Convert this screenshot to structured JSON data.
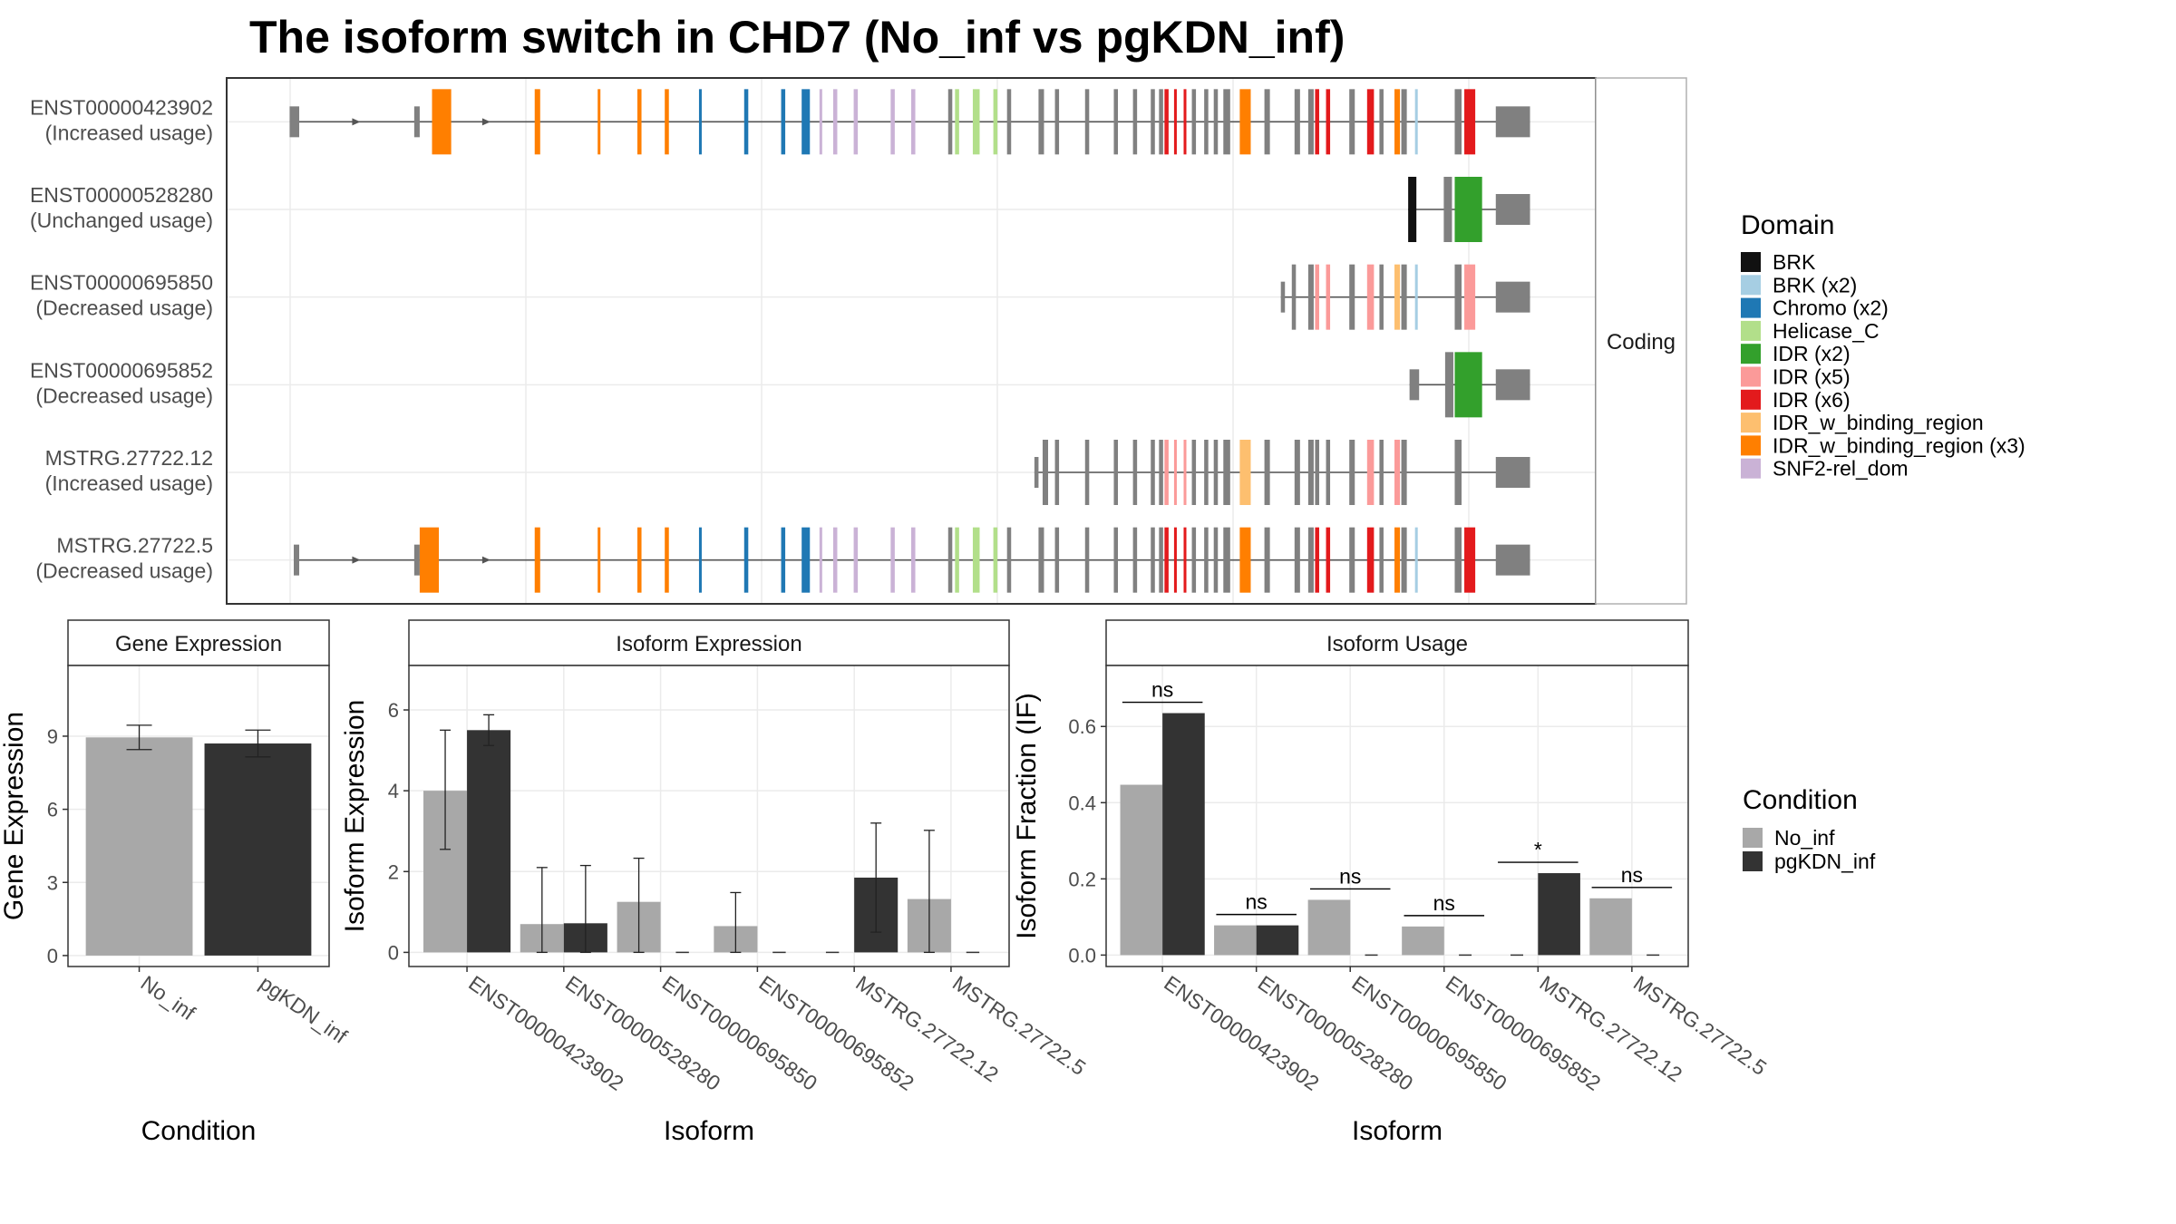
{
  "title": "The isoform switch in CHD7 (No_inf vs pgKDN_inf)",
  "colors": {
    "no_inf": "#a8a8a8",
    "pgkdn_inf": "#333333",
    "utr_exon": "#808080",
    "intron": "#555555",
    "panel_border": "#333333",
    "strip_fill": "#ffffff",
    "grid": "#ebebeb"
  },
  "structure": {
    "strip_label": "Coding",
    "isoforms": [
      {
        "id": "ENST00000423902",
        "usage": "(Increased usage)",
        "start": 46,
        "end": 952,
        "arrows": [
          95,
          190
        ],
        "utr": [
          [
            46,
            53
          ],
          [
            137,
            141
          ],
          [
            927,
            952
          ]
        ],
        "domains": [
          {
            "k": "IDR_w_binding_region (x3)",
            "p": [
              150,
              164
            ]
          },
          {
            "k": "IDR_w_binding_region (x3)",
            "p": [
              225,
              229
            ]
          },
          {
            "k": "IDR_w_binding_region (x3)",
            "p": [
              271,
              273
            ]
          },
          {
            "k": "IDR_w_binding_region (x3)",
            "p": [
              300,
              303
            ]
          },
          {
            "k": "IDR_w_binding_region (x3)",
            "p": [
              320,
              323
            ]
          },
          {
            "k": "Chromo (x2)",
            "p": [
              345,
              347
            ]
          },
          {
            "k": "Chromo (x2)",
            "p": [
              378,
              381
            ]
          },
          {
            "k": "Chromo (x2)",
            "p": [
              405,
              408
            ]
          },
          {
            "k": "Chromo (x2)",
            "p": [
              420,
              426
            ]
          },
          {
            "k": "SNF2-rel_dom",
            "p": [
              433,
              435
            ]
          },
          {
            "k": "SNF2-rel_dom",
            "p": [
              443,
              446
            ]
          },
          {
            "k": "SNF2-rel_dom",
            "p": [
              458,
              461
            ]
          },
          {
            "k": "SNF2-rel_dom",
            "p": [
              485,
              488
            ]
          },
          {
            "k": "SNF2-rel_dom",
            "p": [
              500,
              503
            ]
          },
          {
            "k": "Helicase_C",
            "p": [
              532,
              535
            ]
          },
          {
            "k": "Helicase_C",
            "p": [
              545,
              550
            ]
          },
          {
            "k": "Helicase_C",
            "p": [
              560,
              563
            ]
          },
          {
            "k": "IDR (x6)",
            "p": [
              685,
              688
            ]
          },
          {
            "k": "IDR (x6)",
            "p": [
              692,
              694
            ]
          },
          {
            "k": "IDR (x6)",
            "p": [
              699,
              701
            ]
          },
          {
            "k": "IDR_w_binding_region (x3)",
            "p": [
              740,
              748
            ]
          },
          {
            "k": "IDR (x6)",
            "p": [
              795,
              798
            ]
          },
          {
            "k": "IDR (x6)",
            "p": [
              803,
              806
            ]
          },
          {
            "k": "IDR (x6)",
            "p": [
              833,
              838
            ]
          },
          {
            "k": "IDR_w_binding_region (x3)",
            "p": [
              853,
              857
            ]
          },
          {
            "k": "BRK (x2)",
            "p": [
              868,
              870
            ]
          },
          {
            "k": "IDR (x6)",
            "p": [
              904,
              912
            ]
          }
        ],
        "cds": [
          [
            527,
            530
          ],
          [
            570,
            573
          ],
          [
            593,
            597
          ],
          [
            605,
            608
          ],
          [
            627,
            630
          ],
          [
            648,
            651
          ],
          [
            662,
            665
          ],
          [
            675,
            678
          ],
          [
            681,
            684
          ],
          [
            705,
            708
          ],
          [
            714,
            717
          ],
          [
            721,
            724
          ],
          [
            728,
            733
          ],
          [
            758,
            762
          ],
          [
            780,
            784
          ],
          [
            790,
            794
          ],
          [
            820,
            824
          ],
          [
            842,
            845
          ],
          [
            858,
            862
          ],
          [
            897,
            902
          ]
        ]
      },
      {
        "id": "ENST00000528280",
        "usage": "(Unchanged usage)",
        "start": 863,
        "end": 952,
        "arrows": [],
        "utr": [
          [
            927,
            952
          ]
        ],
        "domains": [
          {
            "k": "BRK",
            "p": [
              863,
              869
            ]
          },
          {
            "k": "IDR (x2)",
            "p": [
              897,
              917
            ]
          }
        ],
        "cds": [
          [
            889,
            895
          ]
        ]
      },
      {
        "id": "ENST00000695850",
        "usage": "(Decreased usage)",
        "start": 770,
        "end": 952,
        "arrows": [],
        "utr": [
          [
            770,
            773
          ],
          [
            927,
            952
          ]
        ],
        "domains": [
          {
            "k": "IDR (x5)",
            "p": [
              795,
              798
            ]
          },
          {
            "k": "IDR (x5)",
            "p": [
              803,
              806
            ]
          },
          {
            "k": "IDR (x5)",
            "p": [
              833,
              838
            ]
          },
          {
            "k": "IDR_w_binding_region",
            "p": [
              853,
              857
            ]
          },
          {
            "k": "BRK (x2)",
            "p": [
              868,
              870
            ]
          },
          {
            "k": "IDR (x5)",
            "p": [
              904,
              912
            ]
          }
        ],
        "cds": [
          [
            778,
            781
          ],
          [
            790,
            794
          ],
          [
            820,
            824
          ],
          [
            842,
            845
          ],
          [
            858,
            862
          ],
          [
            897,
            902
          ]
        ]
      },
      {
        "id": "ENST00000695852",
        "usage": "(Decreased usage)",
        "start": 864,
        "end": 952,
        "arrows": [],
        "utr": [
          [
            864,
            871
          ],
          [
            927,
            952
          ]
        ],
        "domains": [
          {
            "k": "IDR (x2)",
            "p": [
              897,
              917
            ]
          }
        ],
        "cds": [
          [
            890,
            896
          ]
        ]
      },
      {
        "id": "MSTRG.27722.12",
        "usage": "(Increased usage)",
        "start": 590,
        "end": 952,
        "arrows": [],
        "utr": [
          [
            590,
            593
          ],
          [
            927,
            952
          ]
        ],
        "domains": [
          {
            "k": "IDR (x5)",
            "p": [
              685,
              688
            ]
          },
          {
            "k": "IDR (x5)",
            "p": [
              692,
              694
            ]
          },
          {
            "k": "IDR (x5)",
            "p": [
              699,
              701
            ]
          },
          {
            "k": "IDR_w_binding_region",
            "p": [
              740,
              748
            ]
          },
          {
            "k": "IDR (x5)",
            "p": [
              833,
              838
            ]
          },
          {
            "k": "IDR (x5)",
            "p": [
              853,
              857
            ]
          }
        ],
        "cds": [
          [
            596,
            600
          ],
          [
            605,
            608
          ],
          [
            627,
            630
          ],
          [
            648,
            651
          ],
          [
            662,
            665
          ],
          [
            675,
            678
          ],
          [
            681,
            684
          ],
          [
            705,
            708
          ],
          [
            714,
            717
          ],
          [
            721,
            724
          ],
          [
            728,
            733
          ],
          [
            758,
            762
          ],
          [
            780,
            784
          ],
          [
            790,
            794
          ],
          [
            795,
            798
          ],
          [
            803,
            806
          ],
          [
            820,
            824
          ],
          [
            842,
            845
          ],
          [
            858,
            862
          ],
          [
            897,
            902
          ]
        ]
      },
      {
        "id": "MSTRG.27722.5",
        "usage": "(Decreased usage)",
        "start": 49,
        "end": 952,
        "arrows": [
          95,
          190
        ],
        "utr": [
          [
            49,
            53
          ],
          [
            137,
            141
          ],
          [
            927,
            952
          ]
        ],
        "domains": [
          {
            "k": "IDR_w_binding_region (x3)",
            "p": [
              141,
              155
            ]
          },
          {
            "k": "IDR_w_binding_region (x3)",
            "p": [
              225,
              229
            ]
          },
          {
            "k": "IDR_w_binding_region (x3)",
            "p": [
              271,
              273
            ]
          },
          {
            "k": "IDR_w_binding_region (x3)",
            "p": [
              300,
              303
            ]
          },
          {
            "k": "IDR_w_binding_region (x3)",
            "p": [
              320,
              323
            ]
          },
          {
            "k": "Chromo (x2)",
            "p": [
              345,
              347
            ]
          },
          {
            "k": "Chromo (x2)",
            "p": [
              378,
              381
            ]
          },
          {
            "k": "Chromo (x2)",
            "p": [
              405,
              408
            ]
          },
          {
            "k": "Chromo (x2)",
            "p": [
              420,
              426
            ]
          },
          {
            "k": "SNF2-rel_dom",
            "p": [
              433,
              435
            ]
          },
          {
            "k": "SNF2-rel_dom",
            "p": [
              443,
              446
            ]
          },
          {
            "k": "SNF2-rel_dom",
            "p": [
              458,
              461
            ]
          },
          {
            "k": "SNF2-rel_dom",
            "p": [
              485,
              488
            ]
          },
          {
            "k": "SNF2-rel_dom",
            "p": [
              500,
              503
            ]
          },
          {
            "k": "Helicase_C",
            "p": [
              532,
              535
            ]
          },
          {
            "k": "Helicase_C",
            "p": [
              545,
              550
            ]
          },
          {
            "k": "Helicase_C",
            "p": [
              560,
              563
            ]
          },
          {
            "k": "IDR (x6)",
            "p": [
              685,
              688
            ]
          },
          {
            "k": "IDR (x6)",
            "p": [
              692,
              694
            ]
          },
          {
            "k": "IDR (x6)",
            "p": [
              699,
              701
            ]
          },
          {
            "k": "IDR_w_binding_region (x3)",
            "p": [
              740,
              748
            ]
          },
          {
            "k": "IDR (x6)",
            "p": [
              795,
              798
            ]
          },
          {
            "k": "IDR (x6)",
            "p": [
              803,
              806
            ]
          },
          {
            "k": "IDR (x6)",
            "p": [
              833,
              838
            ]
          },
          {
            "k": "IDR_w_binding_region (x3)",
            "p": [
              853,
              857
            ]
          },
          {
            "k": "BRK (x2)",
            "p": [
              868,
              870
            ]
          },
          {
            "k": "IDR (x6)",
            "p": [
              904,
              912
            ]
          }
        ],
        "cds": [
          [
            527,
            530
          ],
          [
            570,
            573
          ],
          [
            593,
            597
          ],
          [
            605,
            608
          ],
          [
            627,
            630
          ],
          [
            648,
            651
          ],
          [
            662,
            665
          ],
          [
            675,
            678
          ],
          [
            681,
            684
          ],
          [
            705,
            708
          ],
          [
            714,
            717
          ],
          [
            721,
            724
          ],
          [
            728,
            733
          ],
          [
            758,
            762
          ],
          [
            780,
            784
          ],
          [
            790,
            794
          ],
          [
            820,
            824
          ],
          [
            842,
            845
          ],
          [
            858,
            862
          ],
          [
            897,
            902
          ]
        ]
      }
    ]
  },
  "legends": {
    "domain": {
      "title": "Domain",
      "entries": [
        {
          "label": "BRK",
          "color": "#111111"
        },
        {
          "label": "BRK (x2)",
          "color": "#a6cee3"
        },
        {
          "label": "Chromo (x2)",
          "color": "#1f78b4"
        },
        {
          "label": "Helicase_C",
          "color": "#b2df8a"
        },
        {
          "label": "IDR (x2)",
          "color": "#33a02c"
        },
        {
          "label": "IDR (x5)",
          "color": "#fb9a99"
        },
        {
          "label": "IDR (x6)",
          "color": "#e31a1c"
        },
        {
          "label": "IDR_w_binding_region",
          "color": "#fdbf6f"
        },
        {
          "label": "IDR_w_binding_region (x3)",
          "color": "#ff7f00"
        },
        {
          "label": "SNF2-rel_dom",
          "color": "#cab2d6"
        }
      ]
    },
    "condition": {
      "title": "Condition",
      "entries": [
        {
          "label": "No_inf",
          "color": "#a8a8a8"
        },
        {
          "label": "pgKDN_inf",
          "color": "#333333"
        }
      ]
    }
  },
  "chart_data": [
    {
      "type": "bar",
      "strip": "Gene Expression",
      "xlabel": "Condition",
      "ylabel": "Gene Expression",
      "categories": [
        "No_inf",
        "pgKDN_inf"
      ],
      "values": [
        8.95,
        8.7
      ],
      "errors": [
        [
          8.45,
          9.45
        ],
        [
          8.15,
          9.25
        ]
      ],
      "ylim": [
        -0.45,
        11.9
      ],
      "yticks": [
        0,
        3,
        6,
        9
      ]
    },
    {
      "type": "bar",
      "strip": "Isoform Expression",
      "xlabel": "Isoform",
      "ylabel": "Isoform Expression",
      "categories": [
        "ENST00000423902",
        "ENST00000528280",
        "ENST00000695850",
        "ENST00000695852",
        "MSTRG.27722.12",
        "MSTRG.27722.5"
      ],
      "series": [
        {
          "name": "No_inf",
          "values": [
            4.0,
            0.7,
            1.25,
            0.65,
            0,
            1.32
          ],
          "errors": [
            [
              2.55,
              5.5
            ],
            [
              0,
              2.1
            ],
            [
              0,
              2.33
            ],
            [
              0,
              1.48
            ],
            null,
            [
              0,
              3.02
            ]
          ]
        },
        {
          "name": "pgKDN_inf",
          "values": [
            5.5,
            0.72,
            0,
            0,
            1.85,
            0
          ],
          "errors": [
            [
              5.12,
              5.88
            ],
            [
              0,
              2.15
            ],
            null,
            null,
            [
              0.5,
              3.2
            ],
            null
          ]
        }
      ],
      "ylim": [
        -0.35,
        7.1
      ],
      "yticks": [
        0,
        2,
        4,
        6
      ]
    },
    {
      "type": "bar",
      "strip": "Isoform Usage",
      "xlabel": "Isoform",
      "ylabel": "Isoform Fraction (IF)",
      "categories": [
        "ENST00000423902",
        "ENST00000528280",
        "ENST00000695850",
        "ENST00000695852",
        "MSTRG.27722.12",
        "MSTRG.27722.5"
      ],
      "series": [
        {
          "name": "No_inf",
          "values": [
            0.447,
            0.078,
            0.145,
            0.075,
            0,
            0.149
          ]
        },
        {
          "name": "pgKDN_inf",
          "values": [
            0.635,
            0.078,
            0,
            0,
            0.215,
            0
          ]
        }
      ],
      "significance": [
        "ns",
        "ns",
        "ns",
        "ns",
        "*",
        "ns"
      ],
      "ylim": [
        -0.03,
        0.76
      ],
      "yticks": [
        0.0,
        0.2,
        0.4,
        0.6
      ]
    }
  ]
}
